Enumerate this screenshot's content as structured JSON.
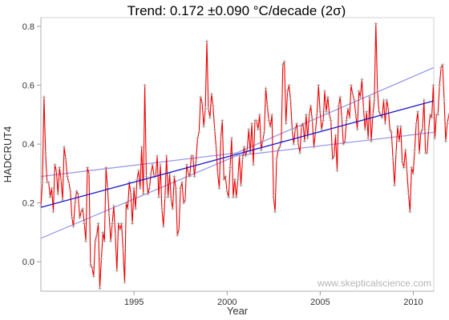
{
  "chart_data": {
    "type": "line",
    "title": "Trend: 0.172 ±0.090 °C/decade (2σ)",
    "xlabel": "Year",
    "ylabel": "HADCRUT4",
    "watermark": "www.skepticalscience.com",
    "xlim": [
      1990.0,
      2011.1
    ],
    "ylim": [
      -0.1,
      0.83
    ],
    "x_ticks": [
      1995,
      2000,
      2005,
      2010
    ],
    "y_ticks": [
      0.0,
      0.2,
      0.4,
      0.6,
      0.8
    ],
    "y_tick_labels": [
      "0.0",
      "0.2",
      "0.4",
      "0.6",
      "0.8"
    ],
    "grid": false,
    "colors": {
      "series": "#ee0000",
      "marker": "#999999",
      "trend": "#1a1acc",
      "ci": "#9999ee"
    },
    "series": [
      {
        "start_year": 1990.0,
        "step": 0.0833,
        "values": [
          0.19,
          0.27,
          0.56,
          0.37,
          0.27,
          0.27,
          0.22,
          0.25,
          0.17,
          0.33,
          0.31,
          0.23,
          0.32,
          0.28,
          0.21,
          0.39,
          0.35,
          0.29,
          0.27,
          0.24,
          0.15,
          0.12,
          0.2,
          0.24,
          0.23,
          0.15,
          0.17,
          0.18,
          0.13,
          0.07,
          0.32,
          0.3,
          -0.01,
          -0.02,
          -0.05,
          0.07,
          0.09,
          0.13,
          -0.09,
          0.01,
          0.1,
          0.07,
          0.32,
          0.25,
          0.16,
          0.07,
          0.13,
          0.19,
          0.09,
          -0.03,
          0.13,
          0.11,
          0.13,
          0.04,
          -0.07,
          0.2,
          0.18,
          0.27,
          0.23,
          0.13,
          0.25,
          0.18,
          0.28,
          0.31,
          0.25,
          0.39,
          0.23,
          0.6,
          0.29,
          0.23,
          0.25,
          0.3,
          0.33,
          0.29,
          0.29,
          0.36,
          0.22,
          0.33,
          0.18,
          0.12,
          0.22,
          0.36,
          0.22,
          0.3,
          0.21,
          0.18,
          0.29,
          0.25,
          0.09,
          0.11,
          0.25,
          0.27,
          0.2,
          0.21,
          0.33,
          0.3,
          0.29,
          0.36,
          0.36,
          0.29,
          0.34,
          0.42,
          0.44,
          0.56,
          0.54,
          0.46,
          0.52,
          0.75,
          0.52,
          0.49,
          0.57,
          0.53,
          0.45,
          0.39,
          0.3,
          0.25,
          0.42,
          0.48,
          0.28,
          0.29,
          0.24,
          0.22,
          0.32,
          0.42,
          0.22,
          0.28,
          0.22,
          0.28,
          0.36,
          0.26,
          0.35,
          0.39,
          0.36,
          0.38,
          0.45,
          0.37,
          0.47,
          0.33,
          0.48,
          0.48,
          0.45,
          0.5,
          0.38,
          0.41,
          0.44,
          0.59,
          0.53,
          0.48,
          0.46,
          0.5,
          0.22,
          0.17,
          0.35,
          0.38,
          0.39,
          0.41,
          0.67,
          0.68,
          0.47,
          0.58,
          0.6,
          0.55,
          0.45,
          0.4,
          0.45,
          0.47,
          0.4,
          0.37,
          0.46,
          0.47,
          0.41,
          0.5,
          0.42,
          0.5,
          0.53,
          0.48,
          0.39,
          0.44,
          0.5,
          0.6,
          0.51,
          0.45,
          0.48,
          0.58,
          0.51,
          0.56,
          0.5,
          0.48,
          0.35,
          0.36,
          0.43,
          0.31,
          0.53,
          0.56,
          0.49,
          0.4,
          0.41,
          0.48,
          0.52,
          0.49,
          0.6,
          0.57,
          0.55,
          0.5,
          0.45,
          0.58,
          0.56,
          0.62,
          0.52,
          0.45,
          0.51,
          0.42,
          0.56,
          0.41,
          0.5,
          0.55,
          0.81,
          0.58,
          0.51,
          0.5,
          0.49,
          0.55,
          0.47,
          0.55,
          0.52,
          0.45,
          0.44,
          0.35,
          0.26,
          0.37,
          0.46,
          0.41,
          0.46,
          0.34,
          0.32,
          0.38,
          0.31,
          0.23,
          0.17,
          0.32,
          0.3,
          0.38,
          0.47,
          0.51,
          0.37,
          0.44,
          0.45,
          0.55,
          0.37,
          0.37,
          0.45,
          0.5,
          0.49,
          0.6,
          0.42,
          0.5,
          0.5,
          0.6,
          0.66,
          0.67,
          0.55,
          0.41,
          0.47,
          0.5,
          0.52,
          0.42,
          0.36,
          0.49,
          0.56,
          0.32
        ]
      }
    ],
    "trend": {
      "x": [
        1990.0,
        2011.1
      ],
      "y": [
        0.185,
        0.547
      ]
    },
    "ci_upper": {
      "x": [
        1990.0,
        2000.5,
        2011.1
      ],
      "y": [
        0.29,
        0.37,
        0.66
      ]
    },
    "ci_lower": {
      "x": [
        1990.0,
        2000.5,
        2011.1
      ],
      "y": [
        0.08,
        0.36,
        0.44
      ]
    }
  }
}
